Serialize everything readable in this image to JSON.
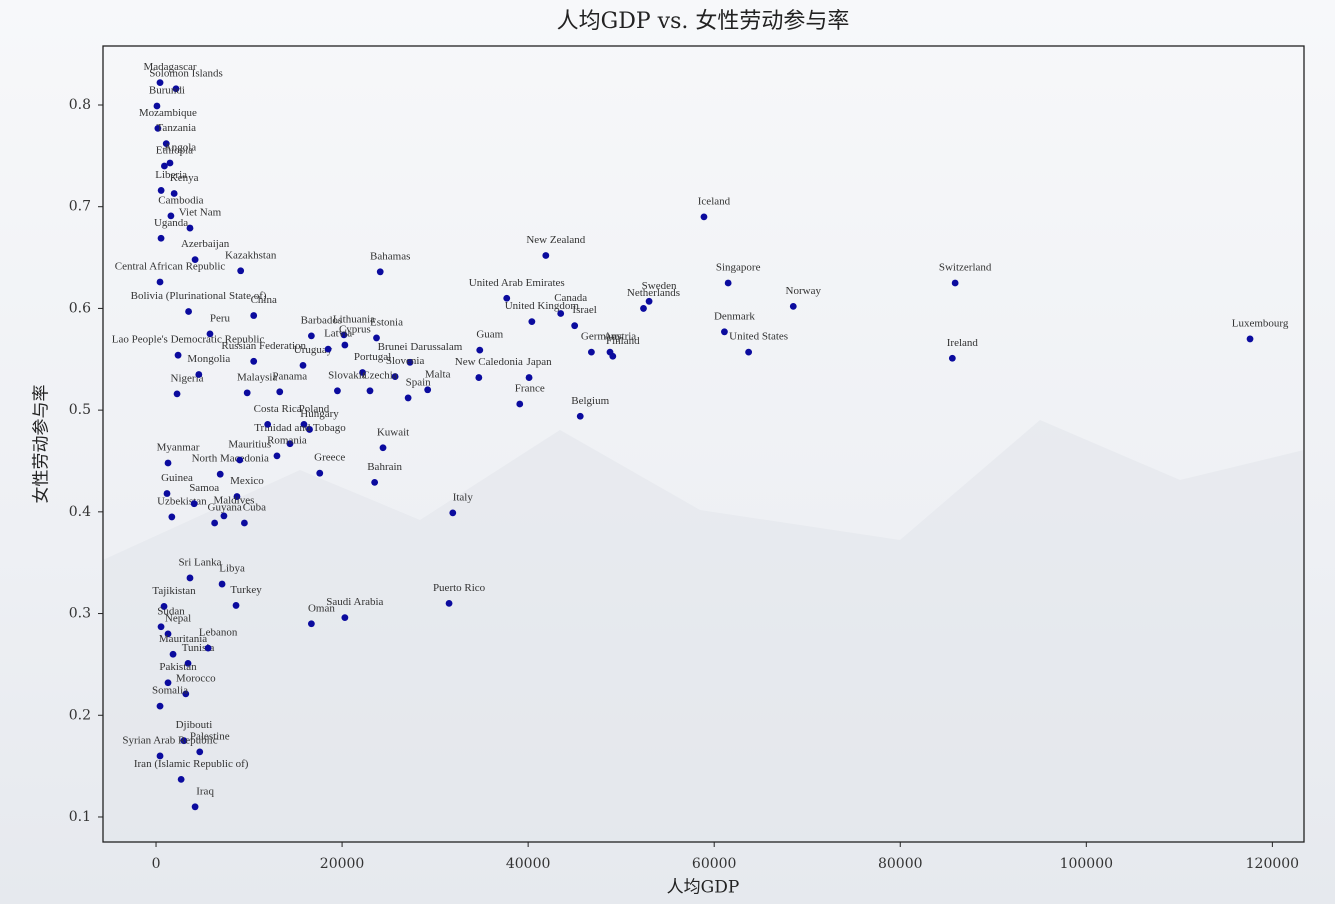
{
  "chart_data": {
    "type": "scatter",
    "title": "人均GDP vs. 女性劳动参与率",
    "xlabel": "人均GDP",
    "ylabel": "女性劳动参与率",
    "color": "#0b0b9e",
    "xlim": [
      -5700,
      123400
    ],
    "ylim": [
      0.0754,
      0.858
    ],
    "xticks": [
      0,
      20000,
      40000,
      60000,
      80000,
      100000,
      120000
    ],
    "yticks": [
      0.1,
      0.2,
      0.3,
      0.4,
      0.5,
      0.6,
      0.7,
      0.8
    ],
    "labels": [
      "Madagascar",
      "Solomon Islands",
      "Burundi",
      "Mozambique",
      "Tanzania",
      "Angola",
      "Ethiopia",
      "Liberia",
      "Kenya",
      "Cambodia",
      "Viet Nam",
      "Uganda",
      "Azerbaijan",
      "Kazakhstan",
      "Central African Republic",
      "Bolivia (Plurinational State of)",
      "Lao People's Democratic Republic",
      "Bahamas",
      "New Zealand",
      "Iceland",
      "Singapore",
      "Switzerland",
      "Norway",
      "Luxembourg",
      "Ireland",
      "Denmark",
      "United States",
      "United Arab Emirates",
      "United Kingdom",
      "Canada",
      "Israel",
      "Sweden",
      "Netherlands",
      "Finland",
      "Austria",
      "Germany",
      "Guam",
      "Japan",
      "New Caledonia",
      "Malta",
      "Brunei Darussalam",
      "France",
      "Belgium",
      "Spain",
      "Slovenia",
      "Portugal",
      "Czechia",
      "Slovakia",
      "Estonia",
      "Lithuania",
      "Cyprus",
      "Barbados",
      "Uruguay",
      "Russian Federation",
      "Kuwait",
      "Bahrain",
      "Italy",
      "Greece",
      "Poland",
      "Hungary",
      "Trinidad and Tobago",
      "Puerto Rico",
      "Saudi Arabia",
      "Oman",
      "Turkey",
      "Libya",
      "Sri Lanka",
      "Tajikistan",
      "Sudan",
      "Nepal",
      "Mauritania",
      "Tunisia",
      "Lebanon",
      "Pakistan",
      "Morocco",
      "Somalia",
      "Djibouti",
      "Palestine",
      "Syrian Arab Republic",
      "Iran (Islamic Republic of)",
      "Iraq",
      "Mexico",
      "Cuba",
      "Maldives",
      "Guyana",
      "Uzbekistan",
      "Samoa",
      "North Macedonia",
      "Romania",
      "Mauritius",
      "Costa Rica",
      "Myanmar",
      "Guinea",
      "Malaysia",
      "Panama",
      "Nigeria",
      "Mongolia",
      "China",
      "Peru",
      "Latvia"
    ],
    "x": [
      430,
      2150,
      100,
      200,
      1100,
      1500,
      900,
      550,
      1950,
      1600,
      3650,
      540,
      4200,
      9100,
      430,
      3500,
      2370,
      24100,
      41900,
      58900,
      61500,
      85900,
      68500,
      117600,
      85600,
      61100,
      63700,
      37700,
      40400,
      43500,
      45000,
      53000,
      52400,
      49100,
      48800,
      46800,
      34800,
      40100,
      34700,
      29200,
      27300,
      39100,
      45600,
      27100,
      25700,
      22200,
      23000,
      19500,
      23700,
      20200,
      20300,
      16700,
      15800,
      10500,
      24400,
      23500,
      31900,
      17600,
      15900,
      16500,
      14400,
      31500,
      20300,
      16700,
      8600,
      7100,
      3650,
      860,
      540,
      1290,
      1830,
      3440,
      5600,
      1290,
      3200,
      430,
      3000,
      4700,
      430,
      2700,
      4200,
      8700,
      9500,
      7300,
      6300,
      1700,
      4100,
      6900,
      13000,
      9000,
      12000,
      1290,
      1180,
      9800,
      13300,
      2260,
      4600,
      10500,
      5800,
      18500
    ],
    "values": [
      0.822,
      0.816,
      0.799,
      0.777,
      0.762,
      0.743,
      0.74,
      0.716,
      0.713,
      0.691,
      0.679,
      0.669,
      0.648,
      0.637,
      0.626,
      0.597,
      0.554,
      0.636,
      0.652,
      0.69,
      0.625,
      0.625,
      0.602,
      0.57,
      0.551,
      0.577,
      0.557,
      0.61,
      0.587,
      0.595,
      0.583,
      0.607,
      0.6,
      0.553,
      0.557,
      0.557,
      0.559,
      0.532,
      0.532,
      0.52,
      0.547,
      0.506,
      0.494,
      0.512,
      0.533,
      0.537,
      0.519,
      0.519,
      0.571,
      0.574,
      0.564,
      0.573,
      0.544,
      0.548,
      0.463,
      0.429,
      0.399,
      0.438,
      0.486,
      0.481,
      0.467,
      0.31,
      0.296,
      0.29,
      0.308,
      0.329,
      0.335,
      0.307,
      0.287,
      0.28,
      0.26,
      0.251,
      0.266,
      0.232,
      0.221,
      0.209,
      0.175,
      0.164,
      0.16,
      0.137,
      0.11,
      0.415,
      0.389,
      0.396,
      0.389,
      0.395,
      0.408,
      0.437,
      0.455,
      0.451,
      0.486,
      0.448,
      0.418,
      0.517,
      0.518,
      0.516,
      0.535,
      0.593,
      0.575,
      0.56
    ]
  }
}
